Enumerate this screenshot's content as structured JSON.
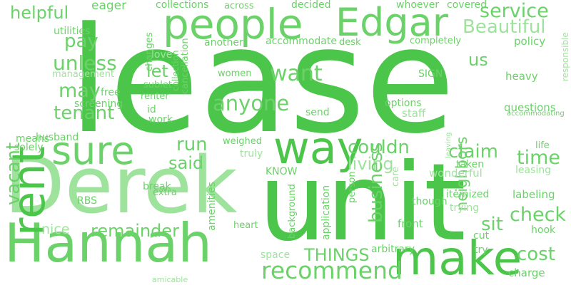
{
  "palette": {
    "bright": "#4cc64a",
    "mid": "#6ad268",
    "light": "#9ee39c",
    "faint": "#c2ecc0"
  },
  "words": [
    {
      "text": "lease",
      "color": "bright"
    },
    {
      "text": "unit",
      "color": "bright"
    },
    {
      "text": "Derek",
      "color": "light"
    },
    {
      "text": "Hannah",
      "color": "mid"
    },
    {
      "text": "people",
      "color": "mid"
    },
    {
      "text": "Edgar",
      "color": "mid"
    },
    {
      "text": "rent",
      "color": "bright"
    },
    {
      "text": "sure",
      "color": "mid"
    },
    {
      "text": "way",
      "color": "bright"
    },
    {
      "text": "make",
      "color": "bright"
    },
    {
      "text": "recommend",
      "color": "mid"
    },
    {
      "text": "anyone",
      "color": "mid"
    },
    {
      "text": "want",
      "color": "mid"
    },
    {
      "text": "service",
      "color": "mid"
    },
    {
      "text": "Beautiful",
      "color": "light"
    },
    {
      "text": "helpful",
      "color": "mid"
    },
    {
      "text": "unless",
      "color": "mid"
    },
    {
      "text": "pay",
      "color": "mid"
    },
    {
      "text": "tenant",
      "color": "mid"
    },
    {
      "text": "may",
      "color": "mid"
    },
    {
      "text": "let",
      "color": "mid"
    },
    {
      "text": "vacant",
      "color": "mid"
    },
    {
      "text": "check",
      "color": "mid"
    },
    {
      "text": "claim",
      "color": "mid"
    },
    {
      "text": "time",
      "color": "mid"
    },
    {
      "text": "couldn",
      "color": "mid"
    },
    {
      "text": "living",
      "color": "light"
    },
    {
      "text": "business",
      "color": "mid"
    },
    {
      "text": "neighbors",
      "color": "mid"
    },
    {
      "text": "said",
      "color": "mid"
    },
    {
      "text": "run",
      "color": "mid"
    },
    {
      "text": "remainder",
      "color": "mid"
    },
    {
      "text": "THINGS",
      "color": "mid"
    },
    {
      "text": "sit",
      "color": "mid"
    },
    {
      "text": "cost",
      "color": "mid"
    },
    {
      "text": "nice",
      "color": "light"
    },
    {
      "text": "us",
      "color": "mid"
    },
    {
      "text": "eager",
      "color": "mid"
    },
    {
      "text": "collections",
      "color": "mid"
    },
    {
      "text": "across",
      "color": "mid"
    },
    {
      "text": "decided",
      "color": "mid"
    },
    {
      "text": "whoever",
      "color": "mid"
    },
    {
      "text": "covered",
      "color": "mid"
    },
    {
      "text": "changes",
      "color": "mid"
    },
    {
      "text": "utilities",
      "color": "mid"
    },
    {
      "text": "another",
      "color": "mid"
    },
    {
      "text": "accommodate",
      "color": "mid"
    },
    {
      "text": "desk",
      "color": "mid"
    },
    {
      "text": "completely",
      "color": "mid"
    },
    {
      "text": "policy",
      "color": "mid"
    },
    {
      "text": "responsible",
      "color": "light"
    },
    {
      "text": "management",
      "color": "light"
    },
    {
      "text": "love",
      "color": "light"
    },
    {
      "text": "cancellation",
      "color": "mid"
    },
    {
      "text": "collection",
      "color": "mid"
    },
    {
      "text": "women",
      "color": "mid"
    },
    {
      "text": "SIGN",
      "color": "mid"
    },
    {
      "text": "heavy",
      "color": "mid"
    },
    {
      "text": "free",
      "color": "mid"
    },
    {
      "text": "sublet",
      "color": "mid"
    },
    {
      "text": "renter",
      "color": "mid"
    },
    {
      "text": "screening",
      "color": "mid"
    },
    {
      "text": "id",
      "color": "mid"
    },
    {
      "text": "work",
      "color": "mid"
    },
    {
      "text": "options",
      "color": "mid"
    },
    {
      "text": "staff",
      "color": "light"
    },
    {
      "text": "questions",
      "color": "mid"
    },
    {
      "text": "accommodating",
      "color": "mid"
    },
    {
      "text": "send",
      "color": "mid"
    },
    {
      "text": "means",
      "color": "mid"
    },
    {
      "text": "husband",
      "color": "mid"
    },
    {
      "text": "solely",
      "color": "mid"
    },
    {
      "text": "weighed",
      "color": "mid"
    },
    {
      "text": "truly",
      "color": "light"
    },
    {
      "text": "leaving",
      "color": "light"
    },
    {
      "text": "life",
      "color": "mid"
    },
    {
      "text": "taken",
      "color": "mid"
    },
    {
      "text": "wonderful",
      "color": "light"
    },
    {
      "text": "leasing",
      "color": "light"
    },
    {
      "text": "KNOW",
      "color": "mid"
    },
    {
      "text": "care",
      "color": "light"
    },
    {
      "text": "itemized",
      "color": "mid"
    },
    {
      "text": "labeling",
      "color": "mid"
    },
    {
      "text": "trying",
      "color": "light"
    },
    {
      "text": "though",
      "color": "mid"
    },
    {
      "text": "application",
      "color": "mid"
    },
    {
      "text": "person",
      "color": "mid"
    },
    {
      "text": "RBS",
      "color": "mid"
    },
    {
      "text": "break",
      "color": "mid"
    },
    {
      "text": "extra",
      "color": "mid"
    },
    {
      "text": "amenities",
      "color": "mid"
    },
    {
      "text": "background",
      "color": "mid"
    },
    {
      "text": "heart",
      "color": "mid"
    },
    {
      "text": "front",
      "color": "mid"
    },
    {
      "text": "cut",
      "color": "mid"
    },
    {
      "text": "hook",
      "color": "mid"
    },
    {
      "text": "space",
      "color": "light"
    },
    {
      "text": "arbitrary",
      "color": "mid"
    },
    {
      "text": "try",
      "color": "mid"
    },
    {
      "text": "charge",
      "color": "mid"
    },
    {
      "text": "amicable",
      "color": "light"
    }
  ]
}
